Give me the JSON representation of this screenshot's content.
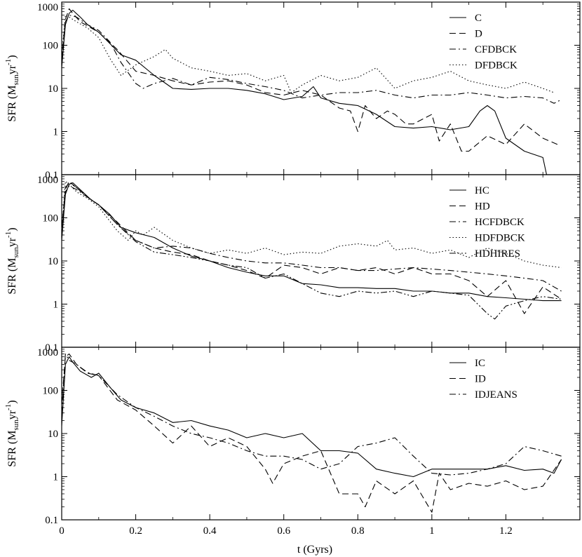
{
  "chart_data": [
    {
      "type": "line",
      "panel": "top",
      "ylabel_main": "SFR (M",
      "ylabel_sub": "sun",
      "ylabel_unit": "yr",
      "ylabel_sup": "-1",
      "ylabel_close": ")",
      "yscale": "log",
      "ylim": [
        0.1,
        1000
      ],
      "yticks": [
        "0.1",
        "1",
        "10",
        "100",
        "1000"
      ],
      "xlim": [
        0,
        1.4
      ],
      "legend_position": "top-right",
      "series": [
        {
          "name": "C",
          "style": "solid",
          "x": [
            0,
            0.01,
            0.02,
            0.03,
            0.05,
            0.07,
            0.1,
            0.13,
            0.16,
            0.2,
            0.25,
            0.3,
            0.35,
            0.4,
            0.45,
            0.5,
            0.55,
            0.6,
            0.65,
            0.68,
            0.7,
            0.75,
            0.8,
            0.85,
            0.9,
            0.95,
            1.0,
            1.05,
            1.1,
            1.13,
            1.15,
            1.17,
            1.2,
            1.25,
            1.3,
            1.31
          ],
          "y": [
            30,
            300,
            550,
            650,
            450,
            300,
            200,
            110,
            60,
            45,
            20,
            10,
            9.5,
            10,
            10,
            9,
            7.5,
            5.5,
            6.5,
            11,
            6,
            4.5,
            4,
            2.5,
            1.3,
            1.2,
            1.3,
            1.1,
            1.3,
            3,
            4,
            3,
            0.7,
            0.35,
            0.25,
            0.1
          ]
        },
        {
          "name": "D",
          "style": "dashed",
          "x": [
            0,
            0.01,
            0.02,
            0.03,
            0.05,
            0.08,
            0.1,
            0.15,
            0.2,
            0.25,
            0.3,
            0.35,
            0.4,
            0.45,
            0.5,
            0.55,
            0.6,
            0.65,
            0.7,
            0.75,
            0.78,
            0.8,
            0.82,
            0.85,
            0.88,
            0.9,
            0.93,
            0.95,
            1.0,
            1.02,
            1.05,
            1.08,
            1.1,
            1.15,
            1.2,
            1.25,
            1.3,
            1.34
          ],
          "y": [
            50,
            400,
            700,
            550,
            350,
            250,
            200,
            80,
            25,
            20,
            15,
            12,
            14,
            15,
            12,
            8,
            7,
            9,
            7,
            3.5,
            3,
            1,
            4,
            2,
            3,
            2.5,
            1.5,
            1.5,
            2.5,
            0.6,
            1.5,
            0.35,
            0.35,
            0.8,
            0.5,
            1.5,
            0.7,
            0.5
          ]
        },
        {
          "name": "CFDBCK",
          "style": "dashdot",
          "x": [
            0,
            0.01,
            0.02,
            0.04,
            0.07,
            0.1,
            0.13,
            0.16,
            0.2,
            0.22,
            0.25,
            0.3,
            0.35,
            0.4,
            0.45,
            0.5,
            0.55,
            0.6,
            0.65,
            0.7,
            0.75,
            0.8,
            0.85,
            0.9,
            0.95,
            1.0,
            1.05,
            1.1,
            1.15,
            1.2,
            1.25,
            1.3,
            1.33,
            1.35
          ],
          "y": [
            40,
            350,
            500,
            450,
            300,
            220,
            120,
            40,
            13,
            10,
            13,
            17,
            12,
            18,
            16,
            13,
            11,
            9,
            6,
            7,
            8,
            8,
            9,
            7,
            6,
            7,
            7,
            8,
            7,
            6,
            6.5,
            6,
            4.5,
            5.5
          ]
        },
        {
          "name": "DFDBCK",
          "style": "dotted",
          "x": [
            0,
            0.01,
            0.02,
            0.04,
            0.07,
            0.1,
            0.13,
            0.16,
            0.2,
            0.25,
            0.28,
            0.3,
            0.35,
            0.4,
            0.45,
            0.5,
            0.55,
            0.6,
            0.62,
            0.65,
            0.7,
            0.75,
            0.8,
            0.85,
            0.9,
            0.95,
            1.0,
            1.05,
            1.1,
            1.15,
            1.2,
            1.25,
            1.3,
            1.33
          ],
          "y": [
            60,
            500,
            450,
            350,
            250,
            150,
            50,
            20,
            35,
            55,
            80,
            50,
            30,
            25,
            20,
            22,
            15,
            20,
            8,
            12,
            20,
            15,
            18,
            30,
            10,
            15,
            18,
            25,
            15,
            12,
            10,
            14,
            10,
            8
          ]
        }
      ]
    },
    {
      "type": "line",
      "panel": "middle",
      "ylabel_main": "SFR (M",
      "ylabel_sub": "sun",
      "ylabel_unit": "yr",
      "ylabel_sup": "-1",
      "ylabel_close": ")",
      "yscale": "log",
      "ylim": [
        0.1,
        1000
      ],
      "yticks": [
        "0.1",
        "1",
        "10",
        "100",
        "1000"
      ],
      "xlim": [
        0,
        1.4
      ],
      "legend_position": "top-right",
      "series": [
        {
          "name": "HC",
          "style": "solid",
          "x": [
            0,
            0.01,
            0.02,
            0.03,
            0.05,
            0.08,
            0.1,
            0.13,
            0.16,
            0.2,
            0.25,
            0.3,
            0.35,
            0.4,
            0.45,
            0.5,
            0.55,
            0.6,
            0.65,
            0.7,
            0.75,
            0.8,
            0.85,
            0.9,
            0.95,
            1.0,
            1.05,
            1.1,
            1.15,
            1.2,
            1.25,
            1.3,
            1.35
          ],
          "y": [
            30,
            350,
            600,
            650,
            450,
            260,
            200,
            120,
            60,
            45,
            35,
            20,
            13,
            10,
            7,
            5.5,
            4.5,
            4.5,
            3,
            2.8,
            2.4,
            2.4,
            2.3,
            2.3,
            2,
            2,
            1.8,
            1.8,
            1.5,
            1.4,
            1.3,
            1.2,
            1.2
          ]
        },
        {
          "name": "HD",
          "style": "dashed",
          "x": [
            0,
            0.01,
            0.02,
            0.04,
            0.07,
            0.1,
            0.15,
            0.2,
            0.25,
            0.3,
            0.35,
            0.4,
            0.45,
            0.5,
            0.55,
            0.6,
            0.65,
            0.7,
            0.75,
            0.8,
            0.85,
            0.9,
            0.95,
            1.0,
            1.05,
            1.1,
            1.15,
            1.2,
            1.25,
            1.3,
            1.35
          ],
          "y": [
            60,
            450,
            700,
            500,
            300,
            200,
            80,
            30,
            20,
            16,
            14,
            10,
            8,
            6,
            4,
            8,
            7,
            5,
            7,
            6,
            7,
            5,
            7,
            5,
            5,
            3.5,
            1.5,
            3.5,
            0.6,
            2.5,
            1.3
          ]
        },
        {
          "name": "HCFDBCK",
          "style": "dashdot",
          "x": [
            0,
            0.01,
            0.02,
            0.04,
            0.07,
            0.1,
            0.15,
            0.2,
            0.25,
            0.3,
            0.35,
            0.4,
            0.45,
            0.5,
            0.55,
            0.6,
            0.65,
            0.7,
            0.75,
            0.8,
            0.85,
            0.9,
            0.95,
            1.0,
            1.05,
            1.1,
            1.15,
            1.2,
            1.25,
            1.3,
            1.35
          ],
          "y": [
            40,
            400,
            550,
            450,
            300,
            200,
            70,
            30,
            20,
            22,
            20,
            15,
            12,
            10,
            9,
            9,
            8,
            7,
            7,
            6,
            6,
            6.5,
            7,
            6.5,
            6,
            5.5,
            5,
            4.5,
            4,
            3.5,
            2
          ]
        },
        {
          "name": "HDFDBCK",
          "style": "dotted",
          "x": [
            0,
            0.01,
            0.02,
            0.04,
            0.07,
            0.1,
            0.15,
            0.18,
            0.2,
            0.22,
            0.25,
            0.3,
            0.35,
            0.4,
            0.45,
            0.5,
            0.55,
            0.6,
            0.65,
            0.7,
            0.75,
            0.8,
            0.85,
            0.88,
            0.9,
            0.95,
            1.0,
            1.05,
            1.1,
            1.15,
            1.2,
            1.25,
            1.3,
            1.35
          ],
          "y": [
            50,
            700,
            600,
            400,
            280,
            180,
            50,
            30,
            50,
            40,
            60,
            30,
            20,
            15,
            18,
            15,
            20,
            14,
            16,
            15,
            22,
            25,
            22,
            30,
            18,
            20,
            15,
            18,
            12,
            20,
            15,
            10,
            8,
            7
          ]
        },
        {
          "name": "HDHIRES",
          "style": "dashdotdot",
          "x": [
            0,
            0.01,
            0.02,
            0.04,
            0.07,
            0.1,
            0.15,
            0.2,
            0.25,
            0.3,
            0.35,
            0.4,
            0.45,
            0.5,
            0.55,
            0.6,
            0.65,
            0.7,
            0.75,
            0.8,
            0.85,
            0.9,
            0.95,
            1.0,
            1.05,
            1.1,
            1.15,
            1.17,
            1.2,
            1.25,
            1.3,
            1.35
          ],
          "y": [
            40,
            500,
            650,
            500,
            300,
            200,
            70,
            28,
            16,
            14,
            12,
            10,
            8,
            7,
            4,
            5,
            3,
            1.8,
            1.5,
            2,
            1.8,
            2,
            1.5,
            2,
            1.8,
            1.6,
            0.6,
            0.45,
            0.9,
            1.2,
            1.5,
            1.3
          ]
        }
      ]
    },
    {
      "type": "line",
      "panel": "bottom",
      "ylabel_main": "SFR (M",
      "ylabel_sub": "sun",
      "ylabel_unit": "yr",
      "ylabel_sup": "-1",
      "ylabel_close": ")",
      "yscale": "log",
      "ylim": [
        0.1,
        1000
      ],
      "yticks": [
        "0.1",
        "1",
        "10",
        "100",
        "1000"
      ],
      "xlim": [
        0,
        1.4
      ],
      "xticks": [
        "0",
        "0.2",
        "0.4",
        "0.6",
        "0.8",
        "1",
        "1.2"
      ],
      "xlabel": "t (Gyrs)",
      "legend_position": "top-right",
      "series": [
        {
          "name": "IC",
          "style": "solid",
          "x": [
            0,
            0.01,
            0.02,
            0.03,
            0.05,
            0.08,
            0.1,
            0.13,
            0.16,
            0.2,
            0.25,
            0.3,
            0.35,
            0.4,
            0.45,
            0.5,
            0.55,
            0.6,
            0.65,
            0.7,
            0.75,
            0.8,
            0.85,
            0.9,
            0.95,
            1.0,
            1.05,
            1.1,
            1.15,
            1.2,
            1.25,
            1.3,
            1.33,
            1.35
          ],
          "y": [
            15,
            400,
            600,
            450,
            280,
            200,
            250,
            120,
            60,
            40,
            30,
            18,
            20,
            15,
            12,
            8,
            10,
            8,
            10,
            4,
            4,
            3.5,
            1.5,
            1.2,
            1,
            1.5,
            1.5,
            1.5,
            1.5,
            1.8,
            1.4,
            1.5,
            1.2,
            2.5
          ]
        },
        {
          "name": "ID",
          "style": "dashed",
          "x": [
            0,
            0.01,
            0.02,
            0.04,
            0.07,
            0.1,
            0.15,
            0.2,
            0.25,
            0.3,
            0.35,
            0.4,
            0.45,
            0.5,
            0.55,
            0.57,
            0.6,
            0.65,
            0.7,
            0.75,
            0.8,
            0.82,
            0.85,
            0.9,
            0.95,
            1.0,
            1.02,
            1.05,
            1.1,
            1.15,
            1.2,
            1.25,
            1.3,
            1.35
          ],
          "y": [
            50,
            600,
            700,
            400,
            250,
            220,
            60,
            35,
            15,
            6,
            15,
            5,
            8,
            5,
            1.5,
            0.7,
            2,
            3,
            4,
            0.4,
            0.4,
            0.2,
            0.8,
            0.4,
            0.8,
            0.15,
            1.2,
            0.5,
            0.7,
            0.6,
            0.8,
            0.5,
            0.6,
            2.5
          ]
        },
        {
          "name": "IDJEANS",
          "style": "dashdot",
          "x": [
            0,
            0.01,
            0.02,
            0.04,
            0.07,
            0.1,
            0.15,
            0.2,
            0.25,
            0.3,
            0.35,
            0.4,
            0.45,
            0.5,
            0.55,
            0.6,
            0.65,
            0.7,
            0.75,
            0.8,
            0.85,
            0.9,
            0.95,
            1.0,
            1.05,
            1.1,
            1.15,
            1.2,
            1.25,
            1.3,
            1.35
          ],
          "y": [
            30,
            700,
            500,
            400,
            260,
            220,
            80,
            40,
            25,
            15,
            10,
            8,
            6,
            4,
            3,
            3,
            2.5,
            1.5,
            2,
            5,
            6,
            8,
            3,
            1.2,
            1.1,
            1.2,
            1.5,
            2,
            5,
            4,
            3
          ]
        }
      ]
    }
  ]
}
